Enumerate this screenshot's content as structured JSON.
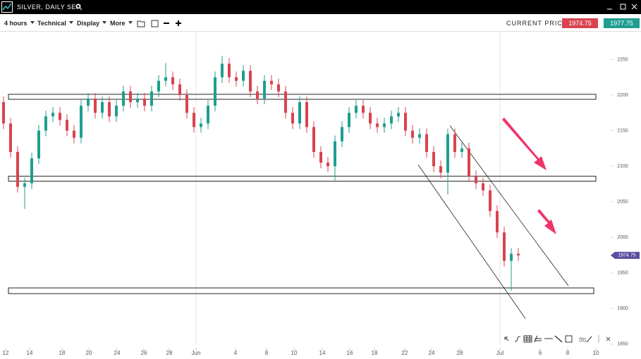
{
  "header": {
    "title": "SILVER, DAILY SEP"
  },
  "toolbar": {
    "menus": [
      "4 hours",
      "Technical",
      "Display",
      "More"
    ],
    "current_price_label": "CURRENT PRICE:",
    "sell_price": "1974.75",
    "buy_price": "1977.75"
  },
  "drawing_tools": {
    "text_tool": "Abc"
  },
  "chart_data": {
    "type": "candlestick",
    "up_color": "#1f9e8f",
    "down_color": "#d9434f",
    "x": [
      0,
      1,
      2,
      3,
      4,
      5,
      6,
      7,
      8,
      9,
      10,
      11,
      12,
      13,
      14,
      15,
      16,
      17,
      18,
      19,
      20,
      21,
      22,
      23,
      24,
      25,
      26,
      27,
      28,
      29,
      30,
      31,
      32,
      33,
      34,
      35,
      36,
      37,
      38,
      39,
      40,
      41,
      42,
      43,
      44,
      45,
      46,
      47,
      48,
      49,
      50,
      51,
      52,
      53,
      54,
      55,
      56,
      57,
      58,
      59,
      60,
      61,
      62,
      63,
      64,
      65,
      66,
      67,
      68,
      69,
      70,
      71,
      72,
      73
    ],
    "open": [
      2190,
      2160,
      2120,
      2071,
      2076,
      2111,
      2150,
      2170,
      2175,
      2165,
      2150,
      2140,
      2185,
      2195,
      2175,
      2190,
      2170,
      2185,
      2205,
      2190,
      2195,
      2185,
      2205,
      2220,
      2225,
      2215,
      2200,
      2175,
      2155,
      2160,
      2185,
      2225,
      2244,
      2225,
      2220,
      2234,
      2205,
      2195,
      2220,
      2215,
      2205,
      2175,
      2160,
      2190,
      2155,
      2120,
      2105,
      2100,
      2135,
      2155,
      2175,
      2185,
      2175,
      2160,
      2155,
      2160,
      2170,
      2175,
      2150,
      2140,
      2145,
      2120,
      2100,
      2091,
      2145,
      2120,
      2125,
      2086,
      2076,
      2066,
      2037,
      2007,
      1967,
      1977
    ],
    "high": [
      2198,
      2168,
      2128,
      2084,
      2119,
      2158,
      2178,
      2183,
      2183,
      2173,
      2158,
      2193,
      2203,
      2203,
      2198,
      2198,
      2193,
      2213,
      2213,
      2203,
      2203,
      2213,
      2228,
      2245,
      2233,
      2223,
      2208,
      2183,
      2168,
      2193,
      2233,
      2255,
      2252,
      2233,
      2242,
      2242,
      2213,
      2228,
      2228,
      2223,
      2213,
      2183,
      2198,
      2198,
      2163,
      2128,
      2113,
      2143,
      2163,
      2183,
      2193,
      2193,
      2183,
      2168,
      2168,
      2178,
      2183,
      2183,
      2158,
      2153,
      2153,
      2128,
      2108,
      2153,
      2153,
      2133,
      2133,
      2094,
      2084,
      2074,
      2045,
      2015,
      1985,
      1985
    ],
    "low": [
      2152,
      2112,
      2063,
      2040,
      2068,
      2103,
      2142,
      2162,
      2157,
      2142,
      2132,
      2132,
      2177,
      2167,
      2167,
      2162,
      2162,
      2177,
      2182,
      2182,
      2177,
      2177,
      2197,
      2212,
      2207,
      2192,
      2167,
      2147,
      2147,
      2152,
      2177,
      2217,
      2217,
      2212,
      2212,
      2197,
      2187,
      2187,
      2207,
      2197,
      2167,
      2152,
      2152,
      2147,
      2112,
      2097,
      2092,
      2080,
      2127,
      2147,
      2167,
      2167,
      2152,
      2147,
      2147,
      2152,
      2162,
      2142,
      2132,
      2132,
      2112,
      2092,
      2083,
      2060,
      2112,
      2112,
      2078,
      2068,
      2058,
      2029,
      1999,
      1959,
      1925,
      1967
    ],
    "close": [
      2160,
      2120,
      2071,
      2076,
      2111,
      2150,
      2170,
      2175,
      2165,
      2150,
      2140,
      2185,
      2195,
      2175,
      2190,
      2170,
      2185,
      2205,
      2190,
      2195,
      2185,
      2205,
      2220,
      2225,
      2215,
      2200,
      2175,
      2155,
      2160,
      2185,
      2225,
      2244,
      2225,
      2220,
      2234,
      2205,
      2195,
      2220,
      2215,
      2205,
      2175,
      2160,
      2190,
      2155,
      2120,
      2105,
      2100,
      2135,
      2155,
      2175,
      2185,
      2175,
      2160,
      2155,
      2160,
      2170,
      2175,
      2150,
      2140,
      2145,
      2120,
      2100,
      2091,
      2145,
      2120,
      2125,
      2086,
      2076,
      2066,
      2037,
      2007,
      1967,
      1977,
      1974.75
    ],
    "zones": [
      {
        "x": [
          0.7,
          84
        ],
        "low": 2194,
        "high": 2201
      },
      {
        "x": [
          0.7,
          84
        ],
        "low": 2079,
        "high": 2086
      },
      {
        "x": [
          0.7,
          83.7
        ],
        "low": 1921,
        "high": 1929
      }
    ],
    "trend_lines": [
      {
        "x": [
          58.8,
          74
        ],
        "y": [
          2102,
          1886
        ]
      },
      {
        "x": [
          63.3,
          80.1
        ],
        "y": [
          2157,
          1932
        ]
      }
    ],
    "xlim": [
      -0.5,
      86
    ],
    "ylim": [
      1841,
      2289
    ],
    "xticks": [
      {
        "value": 0.3,
        "label": "12"
      },
      {
        "value": 3.7,
        "label": "14"
      },
      {
        "value": 8.3,
        "label": "18"
      },
      {
        "value": 12.1,
        "label": "20"
      },
      {
        "value": 16.1,
        "label": "24"
      },
      {
        "value": 19.9,
        "label": "26"
      },
      {
        "value": 23.5,
        "label": "28"
      },
      {
        "value": 27.3,
        "label": "Jun"
      },
      {
        "value": 32.9,
        "label": "4"
      },
      {
        "value": 37.3,
        "label": "8"
      },
      {
        "value": 41.2,
        "label": "10"
      },
      {
        "value": 45.2,
        "label": "14"
      },
      {
        "value": 49.1,
        "label": "16"
      },
      {
        "value": 52.6,
        "label": "18"
      },
      {
        "value": 56.9,
        "label": "22"
      },
      {
        "value": 60.7,
        "label": "24"
      },
      {
        "value": 64.7,
        "label": "28"
      },
      {
        "value": 70.4,
        "label": "Jul"
      },
      {
        "value": 76.1,
        "label": "6"
      },
      {
        "value": 80,
        "label": "8"
      },
      {
        "value": 84,
        "label": "10"
      }
    ],
    "yticks": [
      1850,
      1900,
      1950,
      2000,
      2050,
      2100,
      2150,
      2200,
      2250
    ]
  }
}
